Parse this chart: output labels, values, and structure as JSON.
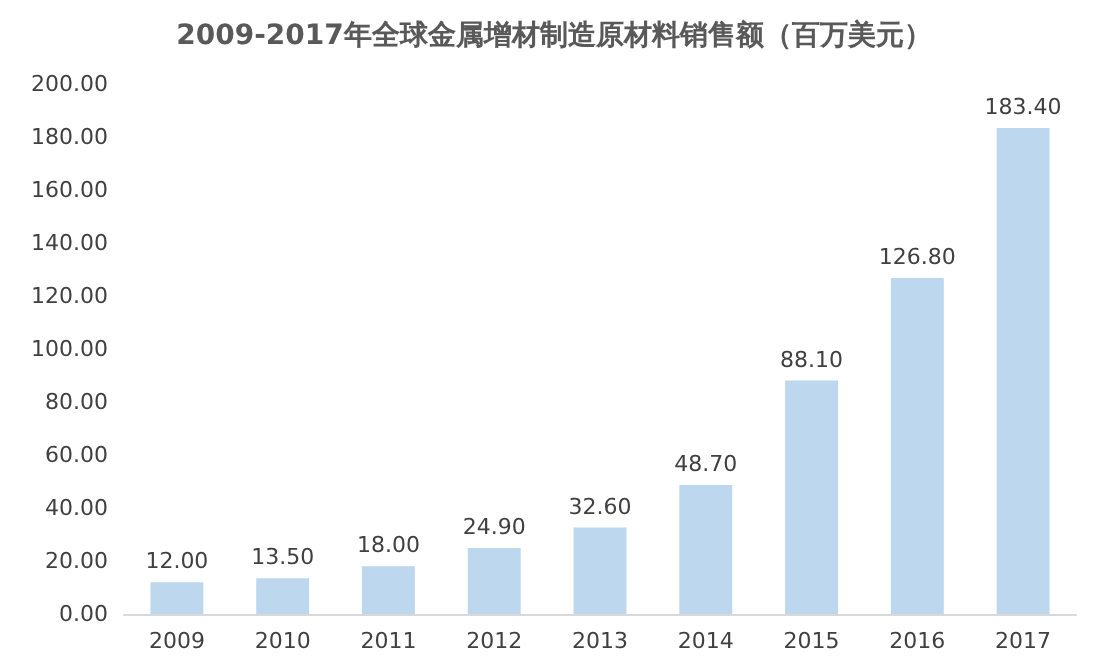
{
  "chart_data": {
    "type": "bar",
    "title": "2009-2017年全球金属增材制造原材料销售额（百万美元）",
    "categories": [
      "2009",
      "2010",
      "2011",
      "2012",
      "2013",
      "2014",
      "2015",
      "2016",
      "2017"
    ],
    "values": [
      12.0,
      13.5,
      18.0,
      24.9,
      32.6,
      48.7,
      88.1,
      126.8,
      183.4
    ],
    "value_labels": [
      "12.00",
      "13.50",
      "18.00",
      "24.90",
      "32.60",
      "48.70",
      "88.10",
      "126.80",
      "183.40"
    ],
    "color": "#bdd7ee",
    "ylim": [
      0,
      200
    ],
    "yticks": [
      {
        "value": 0,
        "label": "0.00"
      },
      {
        "value": 20,
        "label": "20.00"
      },
      {
        "value": 40,
        "label": "40.00"
      },
      {
        "value": 60,
        "label": "60.00"
      },
      {
        "value": 80,
        "label": "80.00"
      },
      {
        "value": 100,
        "label": "100.00"
      },
      {
        "value": 120,
        "label": "120.00"
      },
      {
        "value": 140,
        "label": "140.00"
      },
      {
        "value": 160,
        "label": "160.00"
      },
      {
        "value": 180,
        "label": "180.00"
      },
      {
        "value": 200,
        "label": "200.00"
      }
    ],
    "grid": false
  }
}
